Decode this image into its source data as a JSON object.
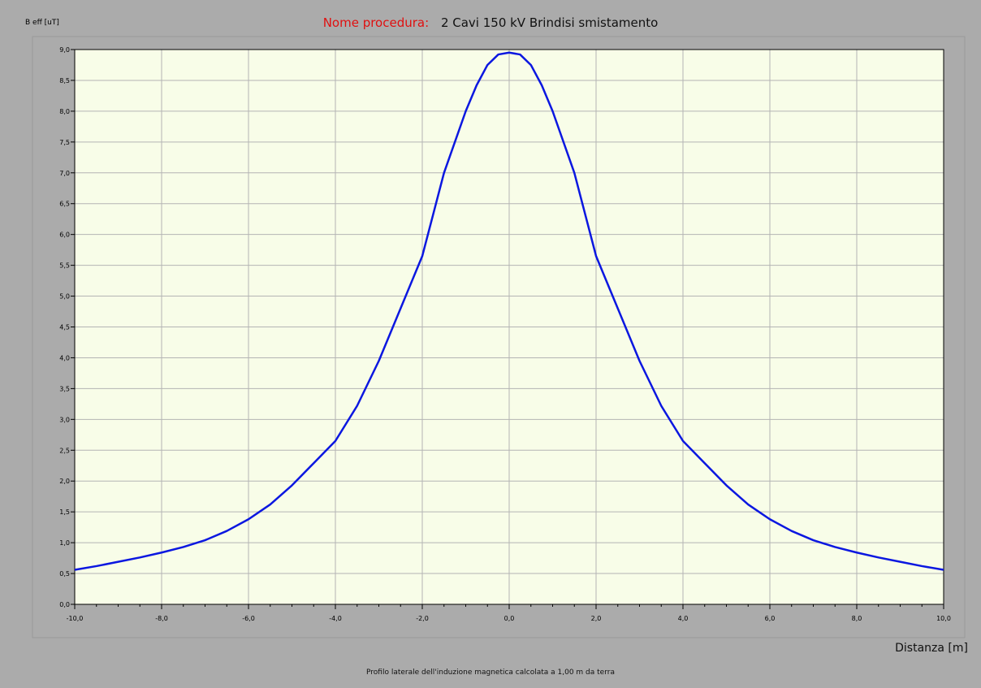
{
  "header": {
    "ylabel": "B eff [uT]",
    "title_key": "Nome procedura:",
    "title_value": "2 Cavi 150 kV Brindisi smistamento"
  },
  "footer": {
    "xlabel": "Distanza [m]",
    "caption": "Profilo laterale dell'induzione magnetica calcolata a 1,00 m da terra"
  },
  "colors": {
    "background": "#ababab",
    "plot_bg": "#f8fde8",
    "grid": "#b4b4b4",
    "line": "#0b17e0",
    "title_key": "#e01010"
  },
  "chart_data": {
    "type": "line",
    "title": "2 Cavi 150 kV Brindisi smistamento",
    "xlabel": "Distanza [m]",
    "ylabel": "B eff [uT]",
    "xlim": [
      -10,
      10
    ],
    "ylim": [
      0,
      9
    ],
    "grid": true,
    "x_ticks": [
      "-10,0",
      "-8,0",
      "-6,0",
      "-4,0",
      "-2,0",
      "0,0",
      "2,0",
      "4,0",
      "6,0",
      "8,0",
      "10,0"
    ],
    "y_ticks": [
      "0,0",
      "0,5",
      "1,0",
      "1,5",
      "2,0",
      "2,5",
      "3,0",
      "3,5",
      "4,0",
      "4,5",
      "5,0",
      "5,5",
      "6,0",
      "6,5",
      "7,0",
      "7,5",
      "8,0",
      "8,5",
      "9,0"
    ],
    "series": [
      {
        "x": [
          -10,
          -9.5,
          -9,
          -8.5,
          -8,
          -7.5,
          -7,
          -6.5,
          -6,
          -5.5,
          -5,
          -4.5,
          -4,
          -3.5,
          -3,
          -2.5,
          -2,
          -1.5,
          -1,
          -0.75,
          -0.5,
          -0.25,
          0,
          0.25,
          0.5,
          0.75,
          1,
          1.5,
          2,
          2.5,
          3,
          3.5,
          4,
          4.5,
          5,
          5.5,
          6,
          6.5,
          7,
          7.5,
          8,
          8.5,
          9,
          9.5,
          10
        ],
        "y": [
          0.56,
          0.62,
          0.69,
          0.76,
          0.84,
          0.93,
          1.04,
          1.19,
          1.38,
          1.62,
          1.93,
          2.29,
          2.65,
          3.22,
          3.95,
          4.8,
          5.65,
          7.0,
          8.0,
          8.42,
          8.75,
          8.92,
          8.95,
          8.92,
          8.75,
          8.42,
          8.0,
          7.0,
          5.65,
          4.8,
          3.95,
          3.22,
          2.65,
          2.29,
          1.93,
          1.62,
          1.38,
          1.19,
          1.04,
          0.93,
          0.84,
          0.76,
          0.69,
          0.62,
          0.56
        ]
      }
    ]
  }
}
